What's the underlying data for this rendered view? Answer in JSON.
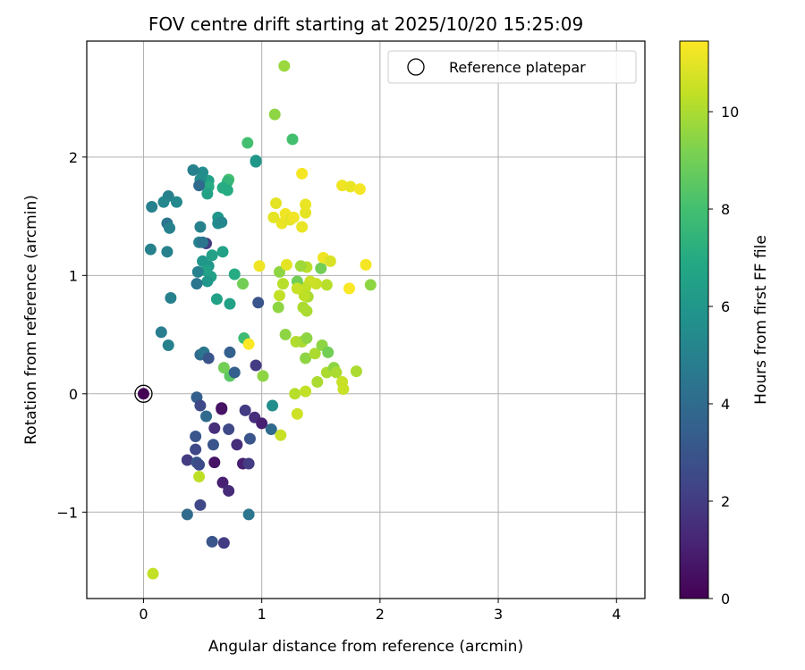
{
  "chart_data": {
    "type": "scatter",
    "title": "FOV centre drift starting at 2025/10/20 15:25:09",
    "xlabel": "Angular distance from reference (arcmin)",
    "ylabel": "Rotation from reference (arcmin)",
    "xlim": [
      -0.48,
      4.24
    ],
    "ylim": [
      -1.73,
      2.98
    ],
    "xticks": [
      0,
      1,
      2,
      3,
      4
    ],
    "xtick_labels": [
      "0",
      "1",
      "2",
      "3",
      "4"
    ],
    "yticks": [
      -1,
      0,
      1,
      2
    ],
    "ytick_labels": [
      "−1",
      "0",
      "1",
      "2"
    ],
    "grid": true,
    "legend": {
      "position": "upper-right",
      "entries": [
        "Reference platepar"
      ]
    },
    "colorbar": {
      "label": "Hours from first FF file",
      "min": 0,
      "max": 11.45,
      "ticks": [
        0,
        2,
        4,
        6,
        8,
        10
      ],
      "tick_labels": [
        "0",
        "2",
        "4",
        "6",
        "8",
        "10"
      ],
      "colormap": "viridis"
    },
    "reference_point": {
      "label": "Reference platepar",
      "x": 0,
      "y": 0,
      "hours": 0
    },
    "points": [
      {
        "x": 0.45,
        "y": -0.03,
        "h": 3.5
      },
      {
        "x": 0.48,
        "y": -0.1,
        "h": 2.5
      },
      {
        "x": 0.53,
        "y": -0.19,
        "h": 4.0
      },
      {
        "x": 0.66,
        "y": -0.12,
        "h": 0.5
      },
      {
        "x": 0.66,
        "y": -0.13,
        "h": 0.6
      },
      {
        "x": 0.86,
        "y": -0.14,
        "h": 2.0
      },
      {
        "x": 0.44,
        "y": -0.36,
        "h": 3.0
      },
      {
        "x": 0.44,
        "y": -0.47,
        "h": 2.5
      },
      {
        "x": 0.59,
        "y": -0.43,
        "h": 3.0
      },
      {
        "x": 0.6,
        "y": -0.29,
        "h": 1.5
      },
      {
        "x": 0.72,
        "y": -0.3,
        "h": 2.5
      },
      {
        "x": 0.79,
        "y": -0.43,
        "h": 1.5
      },
      {
        "x": 0.9,
        "y": -0.38,
        "h": 3.0
      },
      {
        "x": 0.94,
        "y": -0.2,
        "h": 1.5
      },
      {
        "x": 1.0,
        "y": -0.25,
        "h": 1.0
      },
      {
        "x": 1.08,
        "y": -0.3,
        "h": 4.0
      },
      {
        "x": 1.09,
        "y": -0.1,
        "h": 5.6
      },
      {
        "x": 0.37,
        "y": -0.56,
        "h": 2.0
      },
      {
        "x": 0.45,
        "y": -0.58,
        "h": 3.0
      },
      {
        "x": 0.47,
        "y": -0.6,
        "h": 2.6
      },
      {
        "x": 0.6,
        "y": -0.58,
        "h": 0.6
      },
      {
        "x": 0.67,
        "y": -0.75,
        "h": 1.0
      },
      {
        "x": 0.72,
        "y": -0.82,
        "h": 1.4
      },
      {
        "x": 0.84,
        "y": -0.59,
        "h": 1.0
      },
      {
        "x": 0.89,
        "y": -0.59,
        "h": 2.0
      },
      {
        "x": 0.47,
        "y": -0.7,
        "h": 10.3
      },
      {
        "x": 0.48,
        "y": -0.94,
        "h": 2.5
      },
      {
        "x": 0.37,
        "y": -1.02,
        "h": 4.0
      },
      {
        "x": 0.58,
        "y": -1.25,
        "h": 3.0
      },
      {
        "x": 0.68,
        "y": -1.26,
        "h": 2.0
      },
      {
        "x": 0.89,
        "y": -1.02,
        "h": 4.5
      },
      {
        "x": 0.08,
        "y": -1.52,
        "h": 10.4
      },
      {
        "x": 1.16,
        "y": -0.35,
        "h": 10.5
      },
      {
        "x": 1.3,
        "y": -0.17,
        "h": 10.6
      },
      {
        "x": 1.28,
        "y": 0.0,
        "h": 10.2
      },
      {
        "x": 1.37,
        "y": 0.02,
        "h": 10.4
      },
      {
        "x": 1.01,
        "y": 0.15,
        "h": 9.5
      },
      {
        "x": 0.73,
        "y": 0.15,
        "h": 8.5
      },
      {
        "x": 0.68,
        "y": 0.22,
        "h": 9.0
      },
      {
        "x": 0.95,
        "y": 0.24,
        "h": 2.0
      },
      {
        "x": 0.77,
        "y": 0.18,
        "h": 3.5
      },
      {
        "x": 0.48,
        "y": 0.33,
        "h": 4.0
      },
      {
        "x": 0.51,
        "y": 0.35,
        "h": 4.5
      },
      {
        "x": 0.55,
        "y": 0.3,
        "h": 3.0
      },
      {
        "x": 0.73,
        "y": 0.35,
        "h": 3.5
      },
      {
        "x": 0.85,
        "y": 0.47,
        "h": 7.8
      },
      {
        "x": 0.89,
        "y": 0.42,
        "h": 11.4
      },
      {
        "x": 0.15,
        "y": 0.52,
        "h": 4.8
      },
      {
        "x": 0.21,
        "y": 0.41,
        "h": 5.0
      },
      {
        "x": 0.23,
        "y": 0.81,
        "h": 5.0
      },
      {
        "x": 0.62,
        "y": 0.8,
        "h": 6.5
      },
      {
        "x": 0.73,
        "y": 0.76,
        "h": 6.5
      },
      {
        "x": 0.97,
        "y": 0.77,
        "h": 3.0
      },
      {
        "x": 1.14,
        "y": 0.73,
        "h": 9.5
      },
      {
        "x": 1.35,
        "y": 0.73,
        "h": 10.0
      },
      {
        "x": 1.38,
        "y": 0.7,
        "h": 10.0
      },
      {
        "x": 1.2,
        "y": 0.5,
        "h": 9.5
      },
      {
        "x": 1.29,
        "y": 0.44,
        "h": 10.1
      },
      {
        "x": 1.34,
        "y": 0.44,
        "h": 10.0
      },
      {
        "x": 1.38,
        "y": 0.47,
        "h": 9.5
      },
      {
        "x": 1.37,
        "y": 0.3,
        "h": 9.5
      },
      {
        "x": 1.45,
        "y": 0.34,
        "h": 10.0
      },
      {
        "x": 1.51,
        "y": 0.41,
        "h": 9.5
      },
      {
        "x": 1.56,
        "y": 0.35,
        "h": 9.0
      },
      {
        "x": 1.47,
        "y": 0.1,
        "h": 10.0
      },
      {
        "x": 1.55,
        "y": 0.18,
        "h": 10.0
      },
      {
        "x": 1.61,
        "y": 0.22,
        "h": 9.5
      },
      {
        "x": 1.63,
        "y": 0.18,
        "h": 10.0
      },
      {
        "x": 1.68,
        "y": 0.1,
        "h": 10.5
      },
      {
        "x": 1.69,
        "y": 0.04,
        "h": 10.5
      },
      {
        "x": 1.8,
        "y": 0.19,
        "h": 10.0
      },
      {
        "x": 1.92,
        "y": 0.92,
        "h": 9.5
      },
      {
        "x": 1.88,
        "y": 1.09,
        "h": 11.3
      },
      {
        "x": 1.74,
        "y": 0.89,
        "h": 11.4
      },
      {
        "x": 1.55,
        "y": 0.92,
        "h": 10.2
      },
      {
        "x": 1.5,
        "y": 1.06,
        "h": 9.0
      },
      {
        "x": 1.46,
        "y": 0.93,
        "h": 10.5
      },
      {
        "x": 1.52,
        "y": 1.15,
        "h": 11.2
      },
      {
        "x": 1.58,
        "y": 1.12,
        "h": 10.8
      },
      {
        "x": 1.41,
        "y": 0.95,
        "h": 10.6
      },
      {
        "x": 1.38,
        "y": 1.07,
        "h": 10.2
      },
      {
        "x": 1.37,
        "y": 0.9,
        "h": 10.4
      },
      {
        "x": 1.39,
        "y": 0.82,
        "h": 10.0
      },
      {
        "x": 1.36,
        "y": 0.83,
        "h": 10.3
      },
      {
        "x": 1.3,
        "y": 0.95,
        "h": 9.0
      },
      {
        "x": 1.3,
        "y": 0.89,
        "h": 10.5
      },
      {
        "x": 1.18,
        "y": 0.93,
        "h": 10.2
      },
      {
        "x": 1.15,
        "y": 1.03,
        "h": 9.5
      },
      {
        "x": 1.21,
        "y": 1.09,
        "h": 11.0
      },
      {
        "x": 1.33,
        "y": 1.08,
        "h": 9.8
      },
      {
        "x": 1.15,
        "y": 0.83,
        "h": 10.4
      },
      {
        "x": 0.98,
        "y": 1.08,
        "h": 11.2
      },
      {
        "x": 0.84,
        "y": 0.93,
        "h": 9.0
      },
      {
        "x": 1.12,
        "y": 1.61,
        "h": 11.0
      },
      {
        "x": 1.1,
        "y": 1.49,
        "h": 11.0
      },
      {
        "x": 1.17,
        "y": 1.44,
        "h": 11.1
      },
      {
        "x": 1.2,
        "y": 1.52,
        "h": 11.2
      },
      {
        "x": 1.24,
        "y": 1.47,
        "h": 11.0
      },
      {
        "x": 1.27,
        "y": 1.49,
        "h": 11.2
      },
      {
        "x": 1.34,
        "y": 1.41,
        "h": 11.1
      },
      {
        "x": 1.37,
        "y": 1.53,
        "h": 11.0
      },
      {
        "x": 1.37,
        "y": 1.6,
        "h": 11.1
      },
      {
        "x": 1.34,
        "y": 1.86,
        "h": 11.3
      },
      {
        "x": 1.68,
        "y": 1.76,
        "h": 11.2
      },
      {
        "x": 1.75,
        "y": 1.75,
        "h": 11.1
      },
      {
        "x": 1.83,
        "y": 1.73,
        "h": 11.3
      },
      {
        "x": 1.11,
        "y": 2.36,
        "h": 9.5
      },
      {
        "x": 1.19,
        "y": 2.77,
        "h": 9.7
      },
      {
        "x": 1.26,
        "y": 2.15,
        "h": 8.0
      },
      {
        "x": 0.88,
        "y": 2.12,
        "h": 8.0
      },
      {
        "x": 0.95,
        "y": 1.97,
        "h": 6.0
      },
      {
        "x": 0.95,
        "y": 1.96,
        "h": 6.0
      },
      {
        "x": 0.72,
        "y": 1.81,
        "h": 8.0
      },
      {
        "x": 0.71,
        "y": 1.79,
        "h": 7.5
      },
      {
        "x": 0.67,
        "y": 1.74,
        "h": 7.0
      },
      {
        "x": 0.71,
        "y": 1.72,
        "h": 7.0
      },
      {
        "x": 0.55,
        "y": 1.8,
        "h": 6.5
      },
      {
        "x": 0.55,
        "y": 1.75,
        "h": 7.0
      },
      {
        "x": 0.54,
        "y": 1.69,
        "h": 6.5
      },
      {
        "x": 0.5,
        "y": 1.87,
        "h": 5.5
      },
      {
        "x": 0.42,
        "y": 1.89,
        "h": 5.0
      },
      {
        "x": 0.48,
        "y": 1.81,
        "h": 5.5
      },
      {
        "x": 0.47,
        "y": 1.76,
        "h": 4.0
      },
      {
        "x": 0.21,
        "y": 1.67,
        "h": 5.0
      },
      {
        "x": 0.17,
        "y": 1.62,
        "h": 5.2
      },
      {
        "x": 0.28,
        "y": 1.62,
        "h": 5.3
      },
      {
        "x": 0.07,
        "y": 1.58,
        "h": 5.0
      },
      {
        "x": 0.2,
        "y": 1.44,
        "h": 4.5
      },
      {
        "x": 0.22,
        "y": 1.4,
        "h": 5.0
      },
      {
        "x": 0.63,
        "y": 1.49,
        "h": 6.0
      },
      {
        "x": 0.63,
        "y": 1.44,
        "h": 5.5
      },
      {
        "x": 0.66,
        "y": 1.45,
        "h": 5.2
      },
      {
        "x": 0.48,
        "y": 1.41,
        "h": 5.0
      },
      {
        "x": 0.47,
        "y": 1.28,
        "h": 5.0
      },
      {
        "x": 0.53,
        "y": 1.27,
        "h": 2.0
      },
      {
        "x": 0.5,
        "y": 1.28,
        "h": 4.5
      },
      {
        "x": 0.06,
        "y": 1.22,
        "h": 5.0
      },
      {
        "x": 0.2,
        "y": 1.2,
        "h": 5.0
      },
      {
        "x": 0.5,
        "y": 1.12,
        "h": 6.0
      },
      {
        "x": 0.58,
        "y": 1.17,
        "h": 6.5
      },
      {
        "x": 0.67,
        "y": 1.2,
        "h": 6.5
      },
      {
        "x": 0.55,
        "y": 1.08,
        "h": 6.0
      },
      {
        "x": 0.53,
        "y": 1.04,
        "h": 6.5
      },
      {
        "x": 0.46,
        "y": 1.03,
        "h": 5.0
      },
      {
        "x": 0.57,
        "y": 0.99,
        "h": 6.5
      },
      {
        "x": 0.54,
        "y": 0.95,
        "h": 6.0
      },
      {
        "x": 0.45,
        "y": 0.93,
        "h": 4.5
      },
      {
        "x": 0.77,
        "y": 1.01,
        "h": 7.0
      }
    ]
  }
}
